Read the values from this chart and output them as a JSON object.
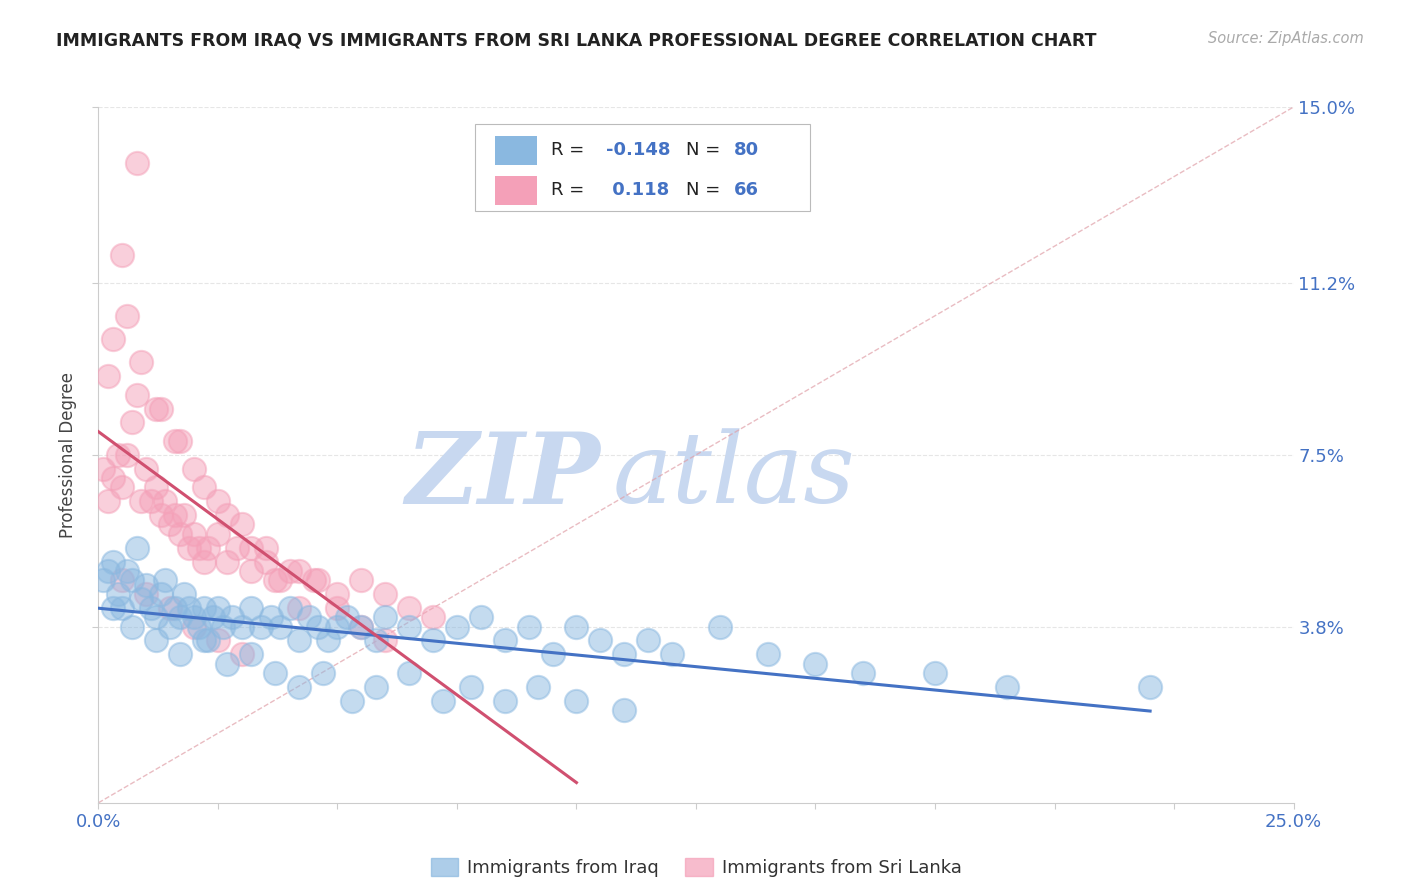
{
  "title": "IMMIGRANTS FROM IRAQ VS IMMIGRANTS FROM SRI LANKA PROFESSIONAL DEGREE CORRELATION CHART",
  "source": "Source: ZipAtlas.com",
  "ylabel": "Professional Degree",
  "xlabel_iraq": "Immigrants from Iraq",
  "xlabel_srilanka": "Immigrants from Sri Lanka",
  "xlim": [
    0.0,
    0.25
  ],
  "ylim": [
    0.0,
    0.15
  ],
  "R_iraq": -0.148,
  "N_iraq": 80,
  "R_srilanka": 0.118,
  "N_srilanka": 66,
  "iraq_color": "#8ab8e0",
  "srilanka_color": "#f4a0b8",
  "trendline_iraq_color": "#4472c4",
  "trendline_srilanka_color": "#d05070",
  "diag_color": "#e0a0a8",
  "watermark_zip_color": "#c8d8f0",
  "watermark_atlas_color": "#c8d8f0",
  "ytick_vals": [
    0.038,
    0.075,
    0.112,
    0.15
  ],
  "ytick_labels": [
    "3.8%",
    "7.5%",
    "11.2%",
    "15.0%"
  ],
  "grid_color": "#e0e0e0",
  "background_color": "#ffffff",
  "iraq_x": [
    0.001,
    0.002,
    0.003,
    0.004,
    0.005,
    0.006,
    0.007,
    0.008,
    0.009,
    0.01,
    0.011,
    0.012,
    0.013,
    0.014,
    0.015,
    0.016,
    0.017,
    0.018,
    0.019,
    0.02,
    0.021,
    0.022,
    0.023,
    0.024,
    0.025,
    0.026,
    0.028,
    0.03,
    0.032,
    0.034,
    0.036,
    0.038,
    0.04,
    0.042,
    0.044,
    0.046,
    0.048,
    0.05,
    0.052,
    0.055,
    0.058,
    0.06,
    0.065,
    0.07,
    0.075,
    0.08,
    0.085,
    0.09,
    0.095,
    0.1,
    0.105,
    0.11,
    0.115,
    0.12,
    0.13,
    0.14,
    0.15,
    0.16,
    0.175,
    0.19,
    0.003,
    0.007,
    0.012,
    0.017,
    0.022,
    0.027,
    0.032,
    0.037,
    0.042,
    0.047,
    0.053,
    0.058,
    0.065,
    0.072,
    0.078,
    0.085,
    0.092,
    0.1,
    0.11,
    0.22
  ],
  "iraq_y": [
    0.048,
    0.05,
    0.052,
    0.045,
    0.042,
    0.05,
    0.048,
    0.055,
    0.044,
    0.047,
    0.042,
    0.04,
    0.045,
    0.048,
    0.038,
    0.042,
    0.04,
    0.045,
    0.042,
    0.04,
    0.038,
    0.042,
    0.035,
    0.04,
    0.042,
    0.038,
    0.04,
    0.038,
    0.042,
    0.038,
    0.04,
    0.038,
    0.042,
    0.035,
    0.04,
    0.038,
    0.035,
    0.038,
    0.04,
    0.038,
    0.035,
    0.04,
    0.038,
    0.035,
    0.038,
    0.04,
    0.035,
    0.038,
    0.032,
    0.038,
    0.035,
    0.032,
    0.035,
    0.032,
    0.038,
    0.032,
    0.03,
    0.028,
    0.028,
    0.025,
    0.042,
    0.038,
    0.035,
    0.032,
    0.035,
    0.03,
    0.032,
    0.028,
    0.025,
    0.028,
    0.022,
    0.025,
    0.028,
    0.022,
    0.025,
    0.022,
    0.025,
    0.022,
    0.02,
    0.025
  ],
  "srilanka_x": [
    0.001,
    0.002,
    0.003,
    0.004,
    0.005,
    0.006,
    0.007,
    0.008,
    0.009,
    0.01,
    0.011,
    0.012,
    0.013,
    0.014,
    0.015,
    0.016,
    0.017,
    0.018,
    0.019,
    0.02,
    0.021,
    0.022,
    0.023,
    0.025,
    0.027,
    0.029,
    0.032,
    0.035,
    0.038,
    0.042,
    0.046,
    0.05,
    0.055,
    0.06,
    0.065,
    0.07,
    0.002,
    0.005,
    0.008,
    0.012,
    0.016,
    0.02,
    0.025,
    0.03,
    0.035,
    0.04,
    0.045,
    0.05,
    0.055,
    0.06,
    0.003,
    0.006,
    0.009,
    0.013,
    0.017,
    0.022,
    0.027,
    0.032,
    0.037,
    0.042,
    0.005,
    0.01,
    0.015,
    0.02,
    0.025,
    0.03
  ],
  "srilanka_y": [
    0.072,
    0.065,
    0.07,
    0.075,
    0.068,
    0.075,
    0.082,
    0.088,
    0.065,
    0.072,
    0.065,
    0.068,
    0.062,
    0.065,
    0.06,
    0.062,
    0.058,
    0.062,
    0.055,
    0.058,
    0.055,
    0.052,
    0.055,
    0.058,
    0.052,
    0.055,
    0.05,
    0.052,
    0.048,
    0.05,
    0.048,
    0.045,
    0.048,
    0.045,
    0.042,
    0.04,
    0.092,
    0.118,
    0.138,
    0.085,
    0.078,
    0.072,
    0.065,
    0.06,
    0.055,
    0.05,
    0.048,
    0.042,
    0.038,
    0.035,
    0.1,
    0.105,
    0.095,
    0.085,
    0.078,
    0.068,
    0.062,
    0.055,
    0.048,
    0.042,
    0.048,
    0.045,
    0.042,
    0.038,
    0.035,
    0.032
  ]
}
